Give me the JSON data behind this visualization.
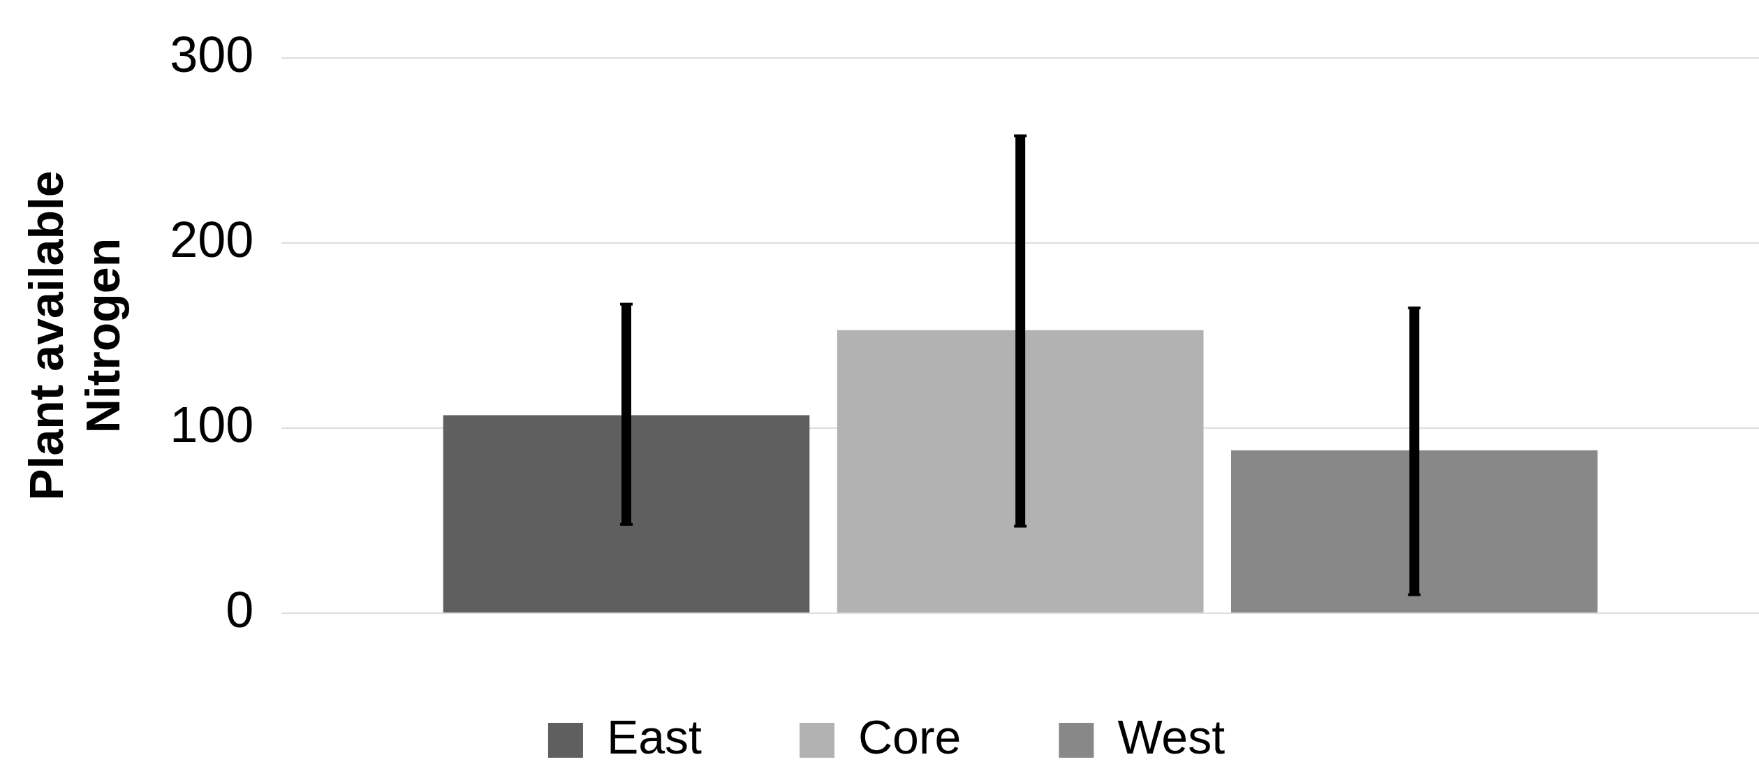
{
  "chart_data": {
    "type": "bar",
    "ylabel": "Plant available\nNitrogen",
    "categories": [
      null
    ],
    "series": [
      {
        "name": "East",
        "color": "#5f5f5f",
        "values": [
          107
        ],
        "errors": [
          [
            48,
            167
          ]
        ]
      },
      {
        "name": "Core",
        "color": "#b2b2b2",
        "values": [
          153
        ],
        "errors": [
          [
            47,
            258
          ]
        ]
      },
      {
        "name": "West",
        "color": "#888888",
        "values": [
          88
        ],
        "errors": [
          [
            10,
            165
          ]
        ]
      }
    ],
    "ylim": [
      0,
      300
    ],
    "yticks": [
      0,
      100,
      200,
      300
    ],
    "grid": "y",
    "legend": "bottom",
    "tick_labels": "y"
  }
}
